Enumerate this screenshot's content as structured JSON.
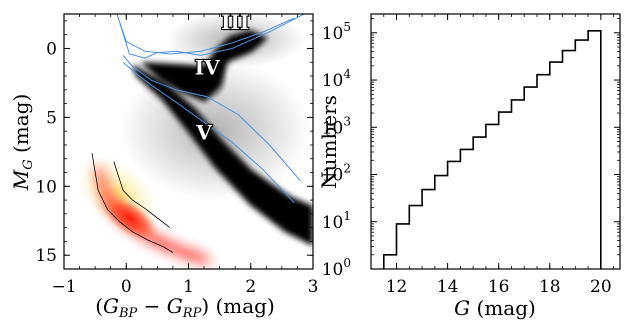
{
  "chart_data": [
    {
      "type": "scatter",
      "title": "",
      "xlabel": "(G_BP − G_RP) (mag)",
      "ylabel": "M_G (mag)",
      "xlim": [
        -1,
        3
      ],
      "ylim": [
        16,
        -2.5
      ],
      "y_inverted": true,
      "xticks": [
        -1,
        0,
        1,
        2,
        3
      ],
      "yticks": [
        0,
        5,
        10,
        15
      ],
      "annotations": [
        {
          "text": "III",
          "x": 1.75,
          "y": -1.4
        },
        {
          "text": "IV",
          "x": 1.3,
          "y": 1.9
        },
        {
          "text": "V",
          "x": 1.25,
          "y": 6.6
        }
      ],
      "isochrones": [
        {
          "x": [
            -0.05,
            0.15,
            0.45,
            0.8,
            1.2,
            1.7,
            2.2,
            2.7
          ],
          "y": [
            1.0,
            1.8,
            2.8,
            3.9,
            5.2,
            6.8,
            8.8,
            11.2
          ]
        },
        {
          "x": [
            -0.05,
            0.1,
            0.4,
            0.8,
            1.3,
            1.8,
            2.3,
            2.8
          ],
          "y": [
            0.5,
            1.3,
            2.3,
            3.0,
            3.5,
            4.8,
            7.0,
            9.6
          ]
        },
        {
          "x": [
            -0.15,
            0.0,
            0.3,
            0.7,
            1.2,
            1.7,
            2.2,
            2.7
          ],
          "y": [
            -2.5,
            -0.5,
            0.2,
            0.4,
            0.2,
            -0.4,
            -1.2,
            -2.2
          ]
        },
        {
          "x": [
            -0.1,
            0.05,
            0.3,
            0.5,
            0.8,
            1.2,
            1.7,
            2.3,
            2.9
          ],
          "y": [
            -1.8,
            0.4,
            0.7,
            0.3,
            0.2,
            0.5,
            0.0,
            -1.2,
            -2.6
          ]
        }
      ],
      "wd_sequences": [
        {
          "x": [
            -0.55,
            -0.45,
            -0.3,
            -0.1,
            0.1,
            0.35,
            0.6,
            0.75
          ],
          "y": [
            7.6,
            10.3,
            11.7,
            12.6,
            13.3,
            13.9,
            14.4,
            14.8
          ]
        },
        {
          "x": [
            -0.2,
            -0.05,
            0.1,
            0.3,
            0.5,
            0.7
          ],
          "y": [
            8.2,
            10.3,
            11.0,
            11.6,
            12.3,
            13.0
          ]
        }
      ]
    },
    {
      "type": "histogram",
      "title": "",
      "xlabel": "G (mag)",
      "ylabel": "Numbers",
      "xlim": [
        11,
        20.75
      ],
      "ylim": [
        1,
        250000
      ],
      "yscale": "log",
      "xticks": [
        12,
        14,
        16,
        18,
        20
      ],
      "yticks": [
        1,
        10,
        100,
        1000,
        10000,
        100000
      ],
      "ytick_labels": [
        "10^0",
        "10^1",
        "10^2",
        "10^3",
        "10^4",
        "10^5"
      ],
      "bin_edges": [
        11.5,
        12,
        12.5,
        13,
        13.5,
        14,
        14.5,
        15,
        15.5,
        16,
        16.5,
        17,
        17.5,
        18,
        18.5,
        19,
        19.5,
        20
      ],
      "counts": [
        2,
        9,
        22,
        48,
        95,
        190,
        340,
        620,
        1150,
        2100,
        3800,
        7100,
        13000,
        24000,
        42000,
        70000,
        110000
      ]
    }
  ]
}
